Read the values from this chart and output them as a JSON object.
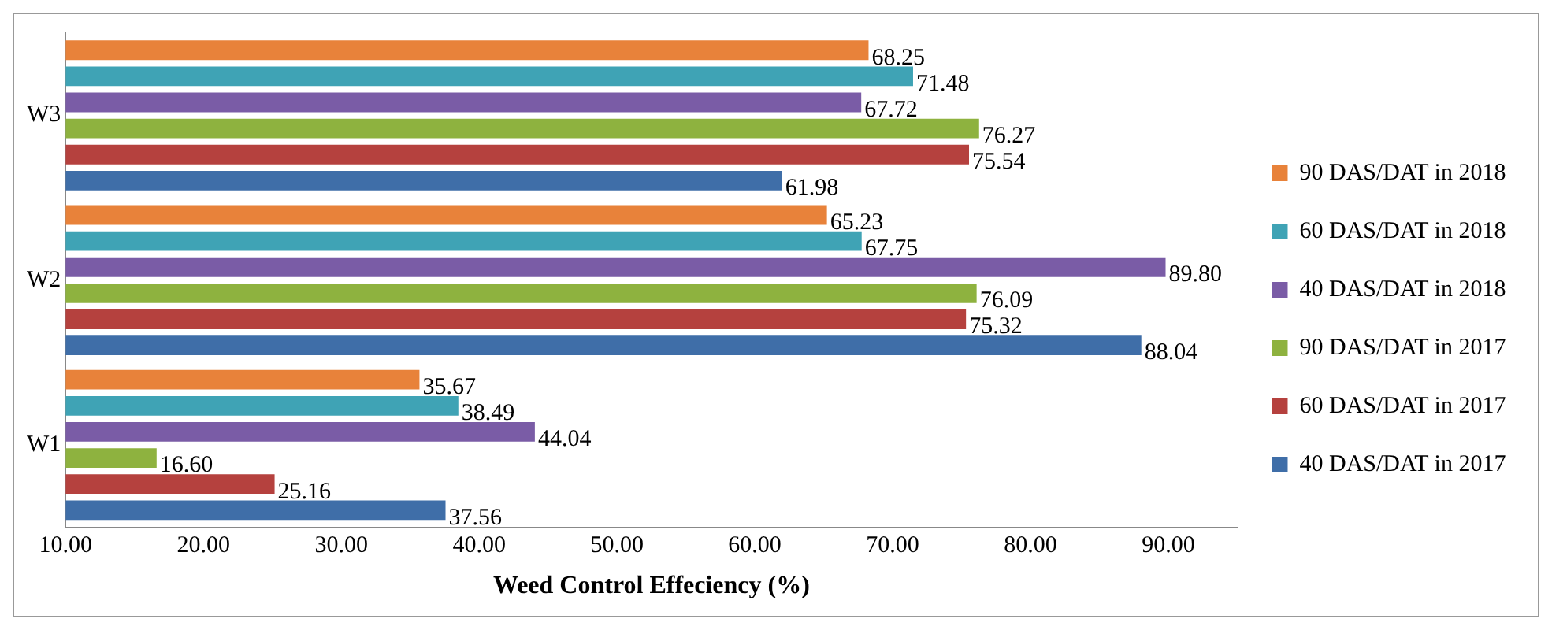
{
  "chart_data": {
    "type": "bar",
    "orientation": "horizontal",
    "xlabel": "Weed Control Effeciency (%)",
    "categories": [
      "W3",
      "W2",
      "W1"
    ],
    "series": [
      {
        "name": "90 DAS/DAT in 2018",
        "color": "#e8823a",
        "values": [
          68.25,
          65.23,
          35.67
        ],
        "value_labels": [
          "68.25",
          "65.23",
          "35.67"
        ]
      },
      {
        "name": "60 DAS/DAT in 2018",
        "color": "#3fa3b5",
        "values": [
          71.48,
          67.75,
          38.49
        ],
        "value_labels": [
          "71.48",
          "67.75",
          "38.49"
        ]
      },
      {
        "name": "40 DAS/DAT in 2018",
        "color": "#7a5ca6",
        "values": [
          67.72,
          89.8,
          44.04
        ],
        "value_labels": [
          "67.72",
          "89.80",
          "44.04"
        ]
      },
      {
        "name": "90 DAS/DAT in 2017",
        "color": "#8eb23f",
        "values": [
          76.27,
          76.09,
          16.6
        ],
        "value_labels": [
          "76.27",
          "76.09",
          "16.60"
        ]
      },
      {
        "name": "60 DAS/DAT in 2017",
        "color": "#b5413e",
        "values": [
          75.54,
          75.32,
          25.16
        ],
        "value_labels": [
          "75.54",
          "75.32",
          "25.16"
        ]
      },
      {
        "name": "40 DAS/DAT in 2017",
        "color": "#3f6ea8",
        "values": [
          61.98,
          88.04,
          37.56
        ],
        "value_labels": [
          "61.98",
          "88.04",
          "37.56"
        ]
      }
    ],
    "xlim": [
      10,
      95
    ],
    "xticks": [
      {
        "value": 10,
        "label": "10.00"
      },
      {
        "value": 20,
        "label": "20.00"
      },
      {
        "value": 30,
        "label": "30.00"
      },
      {
        "value": 40,
        "label": "40.00"
      },
      {
        "value": 50,
        "label": "50.00"
      },
      {
        "value": 60,
        "label": "60.00"
      },
      {
        "value": 70,
        "label": "70.00"
      },
      {
        "value": 80,
        "label": "80.00"
      },
      {
        "value": 90,
        "label": "90.00"
      }
    ],
    "grid": false,
    "legend": "right"
  }
}
